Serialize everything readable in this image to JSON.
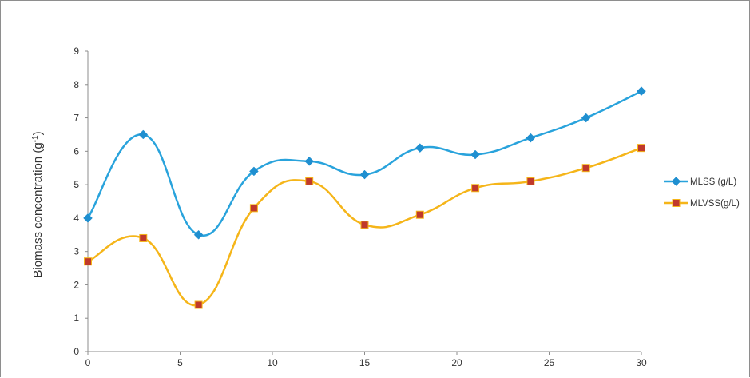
{
  "chart_data": {
    "type": "line",
    "smooth": true,
    "title": "",
    "xlabel": "",
    "ylabel": "Biomass concentration (g",
    "ylabel_superscript": "-1",
    "ylabel_suffix": ")",
    "xlim": [
      0,
      30
    ],
    "ylim": [
      0,
      9
    ],
    "x_ticks": [
      0,
      5,
      10,
      15,
      20,
      25,
      30
    ],
    "y_ticks": [
      0,
      1,
      2,
      3,
      4,
      5,
      6,
      7,
      8,
      9
    ],
    "grid": false,
    "legend_position": "right",
    "x": [
      0,
      3,
      6,
      9,
      12,
      15,
      18,
      21,
      24,
      27,
      30
    ],
    "series": [
      {
        "name": "MLSS (g/L)",
        "color": "#29a3dc",
        "marker_color": "#1f8fd0",
        "marker": "diamond",
        "values": [
          4.0,
          6.5,
          3.5,
          5.4,
          5.7,
          5.3,
          6.1,
          5.9,
          6.4,
          7.0,
          7.8
        ]
      },
      {
        "name": "MLVSS(g/L)",
        "color": "#f5b519",
        "marker_color": "#c0392b",
        "marker": "square",
        "values": [
          2.7,
          3.4,
          1.4,
          4.3,
          5.1,
          3.8,
          4.1,
          4.9,
          5.1,
          5.5,
          6.1
        ]
      }
    ]
  }
}
